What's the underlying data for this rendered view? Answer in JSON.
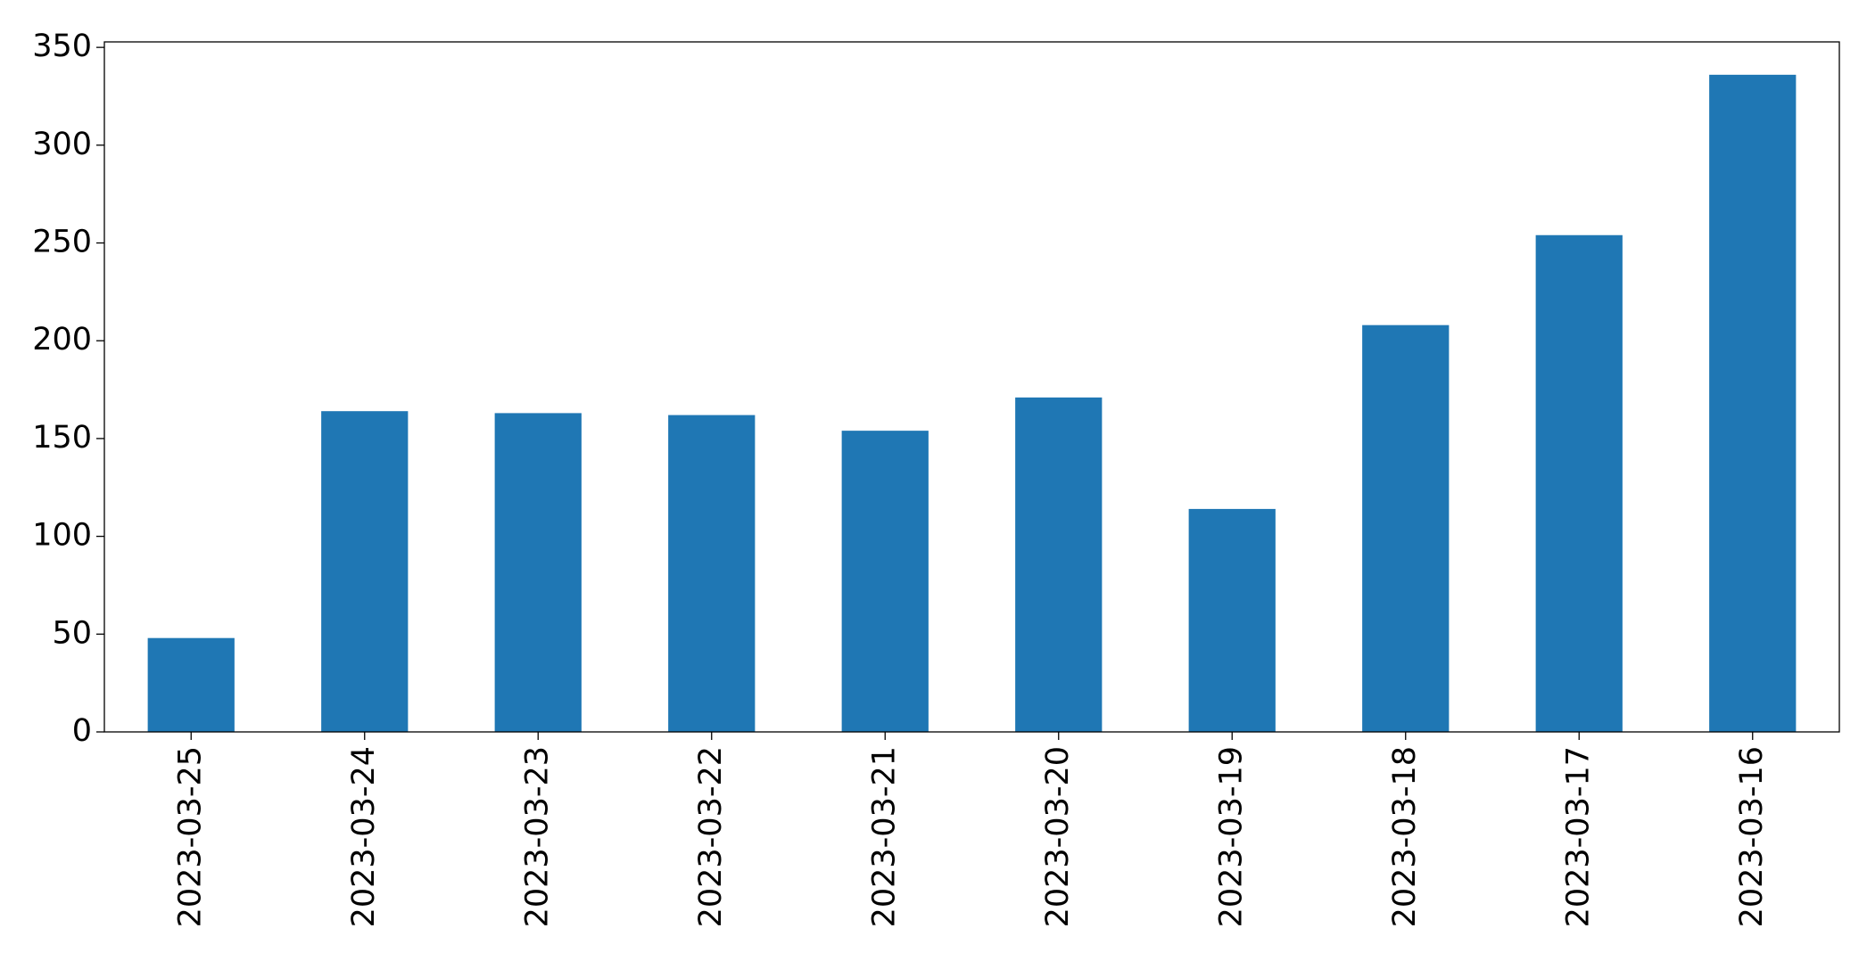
{
  "chart_data": {
    "type": "bar",
    "categories": [
      "2023-03-25",
      "2023-03-24",
      "2023-03-23",
      "2023-03-22",
      "2023-03-21",
      "2023-03-20",
      "2023-03-19",
      "2023-03-18",
      "2023-03-17",
      "2023-03-16"
    ],
    "values": [
      48,
      164,
      163,
      162,
      154,
      171,
      114,
      208,
      254,
      336
    ],
    "color": "#1f77b4",
    "ylim": [
      0,
      352.8
    ],
    "yticks": [
      0,
      50,
      100,
      150,
      200,
      250,
      300,
      350
    ],
    "grid": false
  }
}
